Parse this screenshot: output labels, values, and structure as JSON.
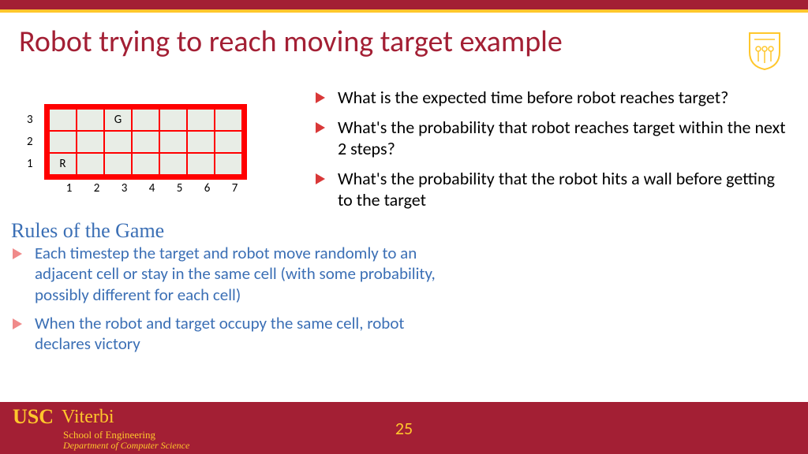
{
  "colors": {
    "cardinal": "#a31f34",
    "gold": "#ffc72c",
    "blue": "#3b6fb5",
    "grid_bg": "#ff0000",
    "cell_bg": "#e8ede6",
    "bullet_left": "#f08a8a",
    "bullet_right": "#d93838"
  },
  "title": "Robot trying to reach moving target example",
  "grid": {
    "cols": 7,
    "rows": 3,
    "y_labels": [
      "3",
      "2",
      "1"
    ],
    "x_labels": [
      "1",
      "2",
      "3",
      "4",
      "5",
      "6",
      "7"
    ],
    "markers": {
      "G": {
        "row": 3,
        "col": 3
      },
      "R": {
        "row": 1,
        "col": 1
      }
    }
  },
  "rules_heading": "Rules of the Game",
  "left_bullets": [
    "Each timestep the target and robot move randomly to an adjacent cell or stay in the same cell (with some probability, possibly different for each cell)",
    "When the robot and target occupy the same cell, robot declares victory"
  ],
  "right_bullets": [
    "What is the expected time before robot reaches target?",
    "What's the probability that robot reaches target within the next 2 steps?",
    "What's the probability that the robot hits a wall before getting to the target"
  ],
  "footer": {
    "usc": "USC",
    "viterbi": "Viterbi",
    "line1": "School of Engineering",
    "line2": "Department of Computer Science",
    "page": "25"
  }
}
